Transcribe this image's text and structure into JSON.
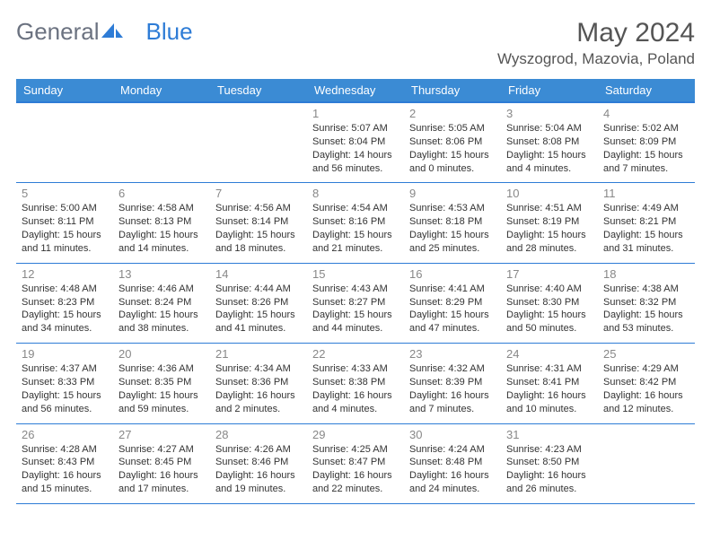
{
  "logo": {
    "part1": "General",
    "part2": "Blue"
  },
  "title": "May 2024",
  "location": "Wyszogrod, Mazovia, Poland",
  "weekdays": [
    "Sunday",
    "Monday",
    "Tuesday",
    "Wednesday",
    "Thursday",
    "Friday",
    "Saturday"
  ],
  "colors": {
    "header_bg": "#3b8bd4",
    "header_text": "#ffffff",
    "rule": "#2e7cd6",
    "daynum": "#888888",
    "text": "#333333",
    "title": "#555555",
    "logo_gray": "#6b7280",
    "logo_blue": "#2e7cd6",
    "background": "#ffffff"
  },
  "typography": {
    "title_fontsize": 30,
    "location_fontsize": 17,
    "weekday_fontsize": 13,
    "daynum_fontsize": 13,
    "cell_fontsize": 11
  },
  "grid": {
    "rows": 5,
    "cols": 7,
    "first_weekday_index": 3
  },
  "days": [
    {
      "n": 1,
      "sunrise": "5:07 AM",
      "sunset": "8:04 PM",
      "daylight": "14 hours and 56 minutes"
    },
    {
      "n": 2,
      "sunrise": "5:05 AM",
      "sunset": "8:06 PM",
      "daylight": "15 hours and 0 minutes"
    },
    {
      "n": 3,
      "sunrise": "5:04 AM",
      "sunset": "8:08 PM",
      "daylight": "15 hours and 4 minutes"
    },
    {
      "n": 4,
      "sunrise": "5:02 AM",
      "sunset": "8:09 PM",
      "daylight": "15 hours and 7 minutes"
    },
    {
      "n": 5,
      "sunrise": "5:00 AM",
      "sunset": "8:11 PM",
      "daylight": "15 hours and 11 minutes"
    },
    {
      "n": 6,
      "sunrise": "4:58 AM",
      "sunset": "8:13 PM",
      "daylight": "15 hours and 14 minutes"
    },
    {
      "n": 7,
      "sunrise": "4:56 AM",
      "sunset": "8:14 PM",
      "daylight": "15 hours and 18 minutes"
    },
    {
      "n": 8,
      "sunrise": "4:54 AM",
      "sunset": "8:16 PM",
      "daylight": "15 hours and 21 minutes"
    },
    {
      "n": 9,
      "sunrise": "4:53 AM",
      "sunset": "8:18 PM",
      "daylight": "15 hours and 25 minutes"
    },
    {
      "n": 10,
      "sunrise": "4:51 AM",
      "sunset": "8:19 PM",
      "daylight": "15 hours and 28 minutes"
    },
    {
      "n": 11,
      "sunrise": "4:49 AM",
      "sunset": "8:21 PM",
      "daylight": "15 hours and 31 minutes"
    },
    {
      "n": 12,
      "sunrise": "4:48 AM",
      "sunset": "8:23 PM",
      "daylight": "15 hours and 34 minutes"
    },
    {
      "n": 13,
      "sunrise": "4:46 AM",
      "sunset": "8:24 PM",
      "daylight": "15 hours and 38 minutes"
    },
    {
      "n": 14,
      "sunrise": "4:44 AM",
      "sunset": "8:26 PM",
      "daylight": "15 hours and 41 minutes"
    },
    {
      "n": 15,
      "sunrise": "4:43 AM",
      "sunset": "8:27 PM",
      "daylight": "15 hours and 44 minutes"
    },
    {
      "n": 16,
      "sunrise": "4:41 AM",
      "sunset": "8:29 PM",
      "daylight": "15 hours and 47 minutes"
    },
    {
      "n": 17,
      "sunrise": "4:40 AM",
      "sunset": "8:30 PM",
      "daylight": "15 hours and 50 minutes"
    },
    {
      "n": 18,
      "sunrise": "4:38 AM",
      "sunset": "8:32 PM",
      "daylight": "15 hours and 53 minutes"
    },
    {
      "n": 19,
      "sunrise": "4:37 AM",
      "sunset": "8:33 PM",
      "daylight": "15 hours and 56 minutes"
    },
    {
      "n": 20,
      "sunrise": "4:36 AM",
      "sunset": "8:35 PM",
      "daylight": "15 hours and 59 minutes"
    },
    {
      "n": 21,
      "sunrise": "4:34 AM",
      "sunset": "8:36 PM",
      "daylight": "16 hours and 2 minutes"
    },
    {
      "n": 22,
      "sunrise": "4:33 AM",
      "sunset": "8:38 PM",
      "daylight": "16 hours and 4 minutes"
    },
    {
      "n": 23,
      "sunrise": "4:32 AM",
      "sunset": "8:39 PM",
      "daylight": "16 hours and 7 minutes"
    },
    {
      "n": 24,
      "sunrise": "4:31 AM",
      "sunset": "8:41 PM",
      "daylight": "16 hours and 10 minutes"
    },
    {
      "n": 25,
      "sunrise": "4:29 AM",
      "sunset": "8:42 PM",
      "daylight": "16 hours and 12 minutes"
    },
    {
      "n": 26,
      "sunrise": "4:28 AM",
      "sunset": "8:43 PM",
      "daylight": "16 hours and 15 minutes"
    },
    {
      "n": 27,
      "sunrise": "4:27 AM",
      "sunset": "8:45 PM",
      "daylight": "16 hours and 17 minutes"
    },
    {
      "n": 28,
      "sunrise": "4:26 AM",
      "sunset": "8:46 PM",
      "daylight": "16 hours and 19 minutes"
    },
    {
      "n": 29,
      "sunrise": "4:25 AM",
      "sunset": "8:47 PM",
      "daylight": "16 hours and 22 minutes"
    },
    {
      "n": 30,
      "sunrise": "4:24 AM",
      "sunset": "8:48 PM",
      "daylight": "16 hours and 24 minutes"
    },
    {
      "n": 31,
      "sunrise": "4:23 AM",
      "sunset": "8:50 PM",
      "daylight": "16 hours and 26 minutes"
    }
  ],
  "labels": {
    "sunrise": "Sunrise:",
    "sunset": "Sunset:",
    "daylight": "Daylight:"
  }
}
